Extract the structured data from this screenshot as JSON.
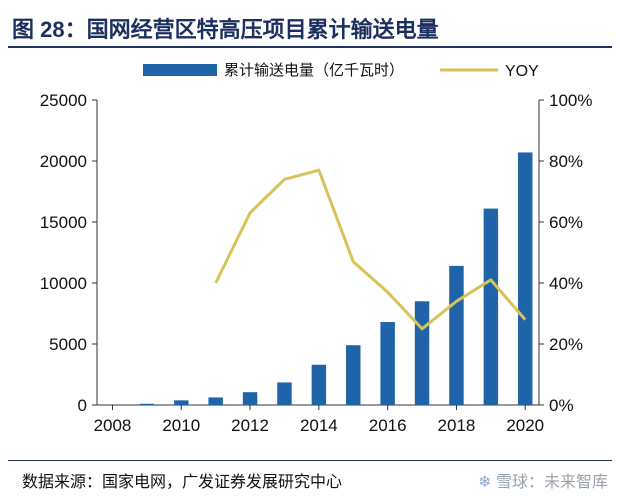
{
  "header": {
    "title": "图 28：国网经营区特高压项目累计输送电量"
  },
  "footer": {
    "source": "数据来源：国家电网，广发证券发展研究中心",
    "watermark": "雪球：未来智库",
    "watermark_icon": "snowflake-icon"
  },
  "colors": {
    "bar": "#1f63a8",
    "line": "#d8c25a",
    "title": "#1d2f5e",
    "axis": "#333333"
  },
  "chart_data": {
    "type": "bar",
    "title": "",
    "xlabel": "",
    "ylabel": "",
    "legend_position": "top",
    "grid": false,
    "x": [
      2008,
      2009,
      2010,
      2011,
      2012,
      2013,
      2014,
      2015,
      2016,
      2017,
      2018,
      2019,
      2020
    ],
    "xticks": [
      "2008",
      "2010",
      "2012",
      "2014",
      "2016",
      "2018",
      "2020"
    ],
    "ylim": [
      0,
      25000
    ],
    "yticks": [
      "0",
      "5000",
      "10000",
      "15000",
      "20000",
      "25000"
    ],
    "y2lim": [
      0,
      100
    ],
    "y2ticks": [
      "0%",
      "20%",
      "40%",
      "60%",
      "80%",
      "100%"
    ],
    "series": [
      {
        "name": "累计输送电量（亿千瓦时）",
        "type": "bar",
        "axis": "left",
        "values": [
          null,
          100,
          380,
          620,
          1050,
          1850,
          3300,
          4900,
          6800,
          8500,
          11400,
          16100,
          20700
        ]
      },
      {
        "name": "YOY",
        "type": "line",
        "axis": "right",
        "values": [
          null,
          null,
          null,
          40,
          63,
          74,
          77,
          47,
          37,
          25,
          34,
          41,
          28
        ]
      }
    ]
  }
}
